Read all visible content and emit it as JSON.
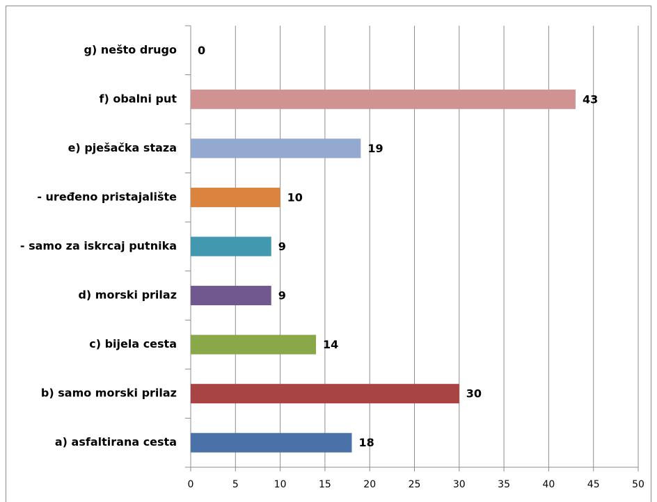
{
  "chart_data": {
    "type": "bar",
    "orientation": "horizontal",
    "categories": [
      "a) asfaltirana cesta",
      "b) samo morski prilaz",
      "c) bijela cesta",
      "d) morski prilaz",
      "- samo za iskrcaj putnika",
      "- uređeno pristajalište",
      "e) pješačka staza",
      "f) obalni put",
      "g) nešto drugo"
    ],
    "values": [
      18,
      30,
      14,
      9,
      9,
      10,
      19,
      43,
      0
    ],
    "colors": [
      "#4a72a8",
      "#a94444",
      "#88a84a",
      "#71588f",
      "#4198af",
      "#db843d",
      "#93a9cf",
      "#d19392",
      "#3d5e8c"
    ],
    "xlim": [
      0,
      50
    ],
    "xticks": [
      0,
      5,
      10,
      15,
      20,
      25,
      30,
      35,
      40,
      45,
      50
    ],
    "grid": true
  }
}
